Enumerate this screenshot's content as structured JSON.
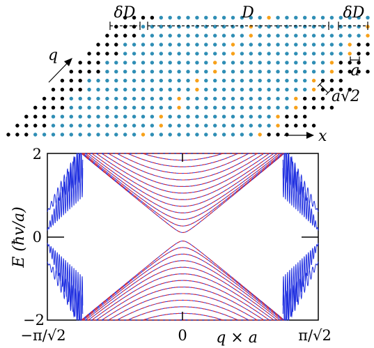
{
  "lattice": {
    "labels": {
      "delta_d_left": "δD",
      "d": "D",
      "delta_d_right": "δD",
      "q": "q",
      "a": "a",
      "a_sqrt2": "a√2",
      "x": "x"
    },
    "rows": 14,
    "center_columns": 12,
    "colors": {
      "outer_site": "#000000",
      "edge_site": "#f7a11a",
      "inner_site": "#2f8eb5"
    }
  },
  "chart_data": {
    "type": "line",
    "xlabel": "q × a",
    "ylabel": "E (ħv/a)",
    "x_ticks": [
      "−π/√2",
      "0",
      "π/√2"
    ],
    "y_ticks": [
      "2",
      "0",
      "−2"
    ],
    "xlim": [
      -2.2214,
      2.2214
    ],
    "ylim": [
      -2,
      2
    ],
    "series": [
      {
        "color": "#1f2fe0",
        "style": "solid",
        "bands": 26
      },
      {
        "color": "#e0262a",
        "style": "dashed",
        "bands": 26
      }
    ],
    "colors": {
      "primary": "#1f2fe0",
      "secondary": "#e0262a"
    }
  }
}
